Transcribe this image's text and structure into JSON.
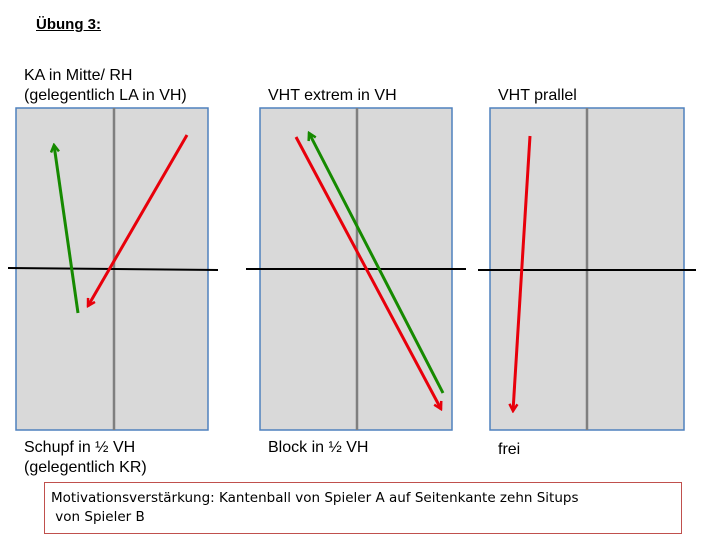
{
  "heading": "Übung 3:",
  "diagrams": [
    {
      "top_label": [
        "KA in Mitte/ RH",
        "(gelegentlich LA in VH)"
      ],
      "bottom_label": [
        "Schupf in ½ VH",
        "(gelegentlich KR)"
      ]
    },
    {
      "top_label": [
        "VHT extrem in VH"
      ],
      "bottom_label": [
        "Block in ½ VH"
      ]
    },
    {
      "top_label": [
        "VHT prallel"
      ],
      "bottom_label": [
        "frei"
      ]
    }
  ],
  "note": [
    "Motivationsverstärkung: Kantenball von Spieler A auf Seitenkante zehn Situps",
    " von Spieler B"
  ],
  "colors": {
    "table_fill": "#d9d9d9",
    "table_border": "#4f81bd",
    "center_line": "#7f7f7f",
    "net": "#000000",
    "arrow_red": "#e8000b",
    "arrow_green": "#168a00",
    "note_border": "#c0504d"
  }
}
